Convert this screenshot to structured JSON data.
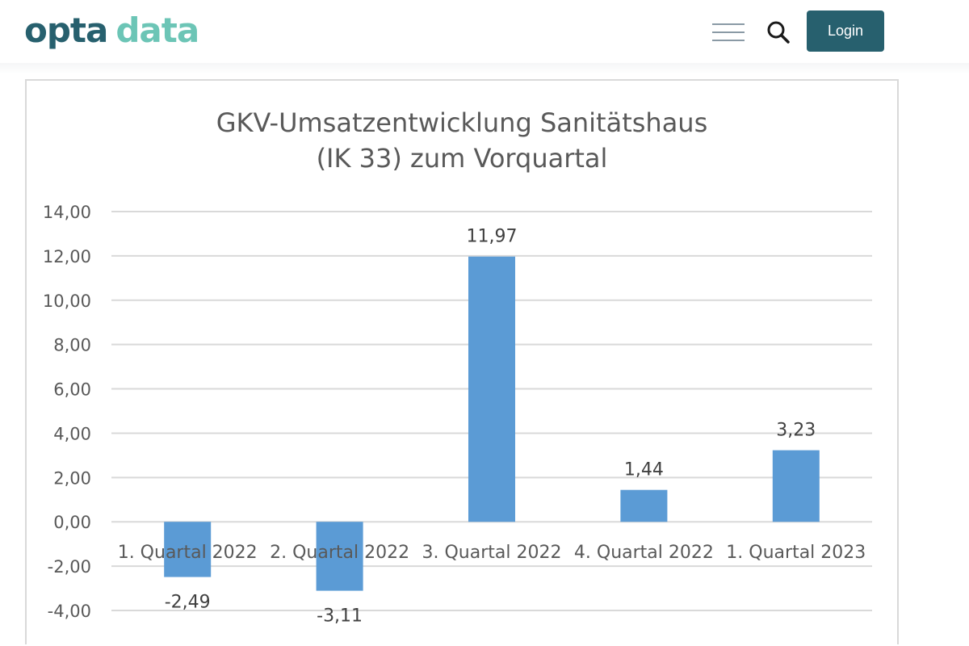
{
  "header": {
    "logo_part1": "opta",
    "logo_part2": "data",
    "login_label": "Login",
    "menu_icon": "hamburger-menu-icon",
    "search_icon": "search-icon",
    "brand_color": "#27606e",
    "accent_color": "#6cc5b6"
  },
  "chart": {
    "title_line1": "GKV-Umsatzentwicklung Sanitätshaus",
    "title_line2": "(IK 33) zum Vorquartal"
  },
  "chart_data": {
    "type": "bar",
    "title": "GKV-Umsatzentwicklung Sanitätshaus (IK 33) zum Vorquartal",
    "categories": [
      "1. Quartal 2022",
      "2. Quartal 2022",
      "3. Quartal 2022",
      "4. Quartal 2022",
      "1. Quartal 2023"
    ],
    "values": [
      -2.49,
      -3.11,
      11.97,
      1.44,
      3.23
    ],
    "data_labels": [
      "-2,49",
      "-3,11",
      "11,97",
      "1,44",
      "3,23"
    ],
    "yticks": [
      14,
      12,
      10,
      8,
      6,
      4,
      2,
      0,
      -2,
      -4
    ],
    "ytick_labels": [
      "14,00",
      "12,00",
      "10,00",
      "8,00",
      "6,00",
      "4,00",
      "2,00",
      "0,00",
      "-2,00",
      "-4,00"
    ],
    "ylim": [
      -4,
      14
    ],
    "xlabel": "",
    "ylabel": "",
    "grid": true,
    "bar_color": "#5b9bd5",
    "grid_color": "#d9d9d9"
  }
}
